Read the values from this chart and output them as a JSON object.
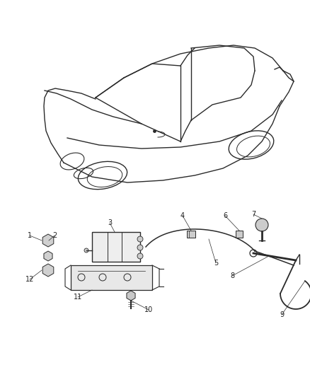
{
  "bg_color": "#ffffff",
  "line_color": "#2a2a2a",
  "fig_width": 4.38,
  "fig_height": 5.33,
  "dpi": 100,
  "label_fontsize": 7.0,
  "label_color": "#222222"
}
